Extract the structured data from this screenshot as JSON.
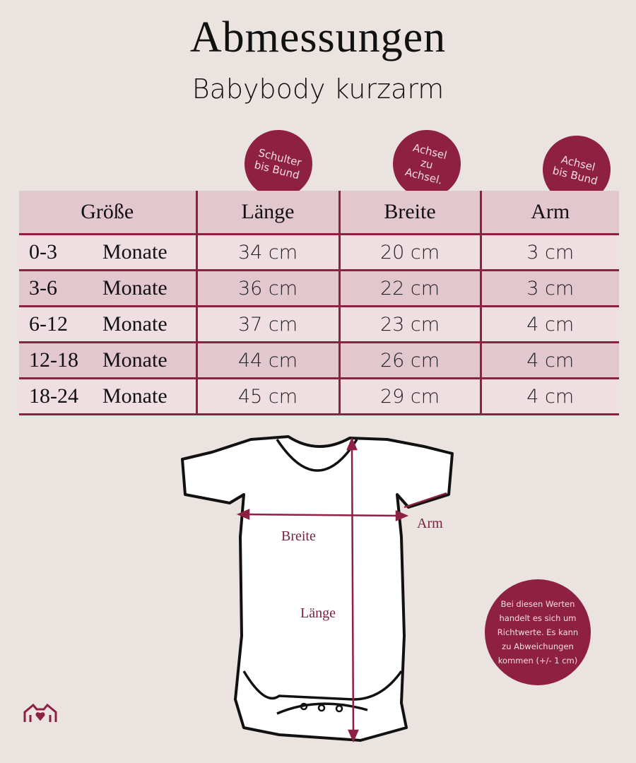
{
  "title": "Abmessungen",
  "subtitle": "Babybody kurzarm",
  "badges": [
    {
      "lines": [
        "Schulter",
        "bis Bund"
      ]
    },
    {
      "lines": [
        "Achsel",
        "zu",
        "Achsel."
      ]
    },
    {
      "lines": [
        "Achsel",
        "bis Bund"
      ]
    }
  ],
  "table": {
    "headers": [
      "Größe",
      "Länge",
      "Breite",
      "Arm"
    ],
    "rows": [
      {
        "range": "0-3",
        "unit": "Monate",
        "laenge": "34 cm",
        "breite": "20 cm",
        "arm": "3 cm"
      },
      {
        "range": "3-6",
        "unit": "Monate",
        "laenge": "36 cm",
        "breite": "22 cm",
        "arm": "3 cm"
      },
      {
        "range": "6-12",
        "unit": "Monate",
        "laenge": "37 cm",
        "breite": "23 cm",
        "arm": "4 cm"
      },
      {
        "range": "12-18",
        "unit": "Monate",
        "laenge": "44 cm",
        "breite": "26 cm",
        "arm": "4 cm"
      },
      {
        "range": "18-24",
        "unit": "Monate",
        "laenge": "45 cm",
        "breite": "29 cm",
        "arm": "4 cm"
      }
    ]
  },
  "diagram": {
    "breite": "Breite",
    "laenge": "Länge",
    "arm": "Arm"
  },
  "note": {
    "lines": [
      "Bei diesen Werten",
      "handelt es sich um",
      "Richtwerte. Es kann",
      "zu Abweichungen",
      "kommen (+/- 1 cm)"
    ]
  },
  "colors": {
    "accent": "#8e2043",
    "background": "#ebe3e0",
    "row_light": "#efdfe2",
    "row_dark": "#e3c7ce"
  },
  "logo_icon": "shirt-heart-icon"
}
